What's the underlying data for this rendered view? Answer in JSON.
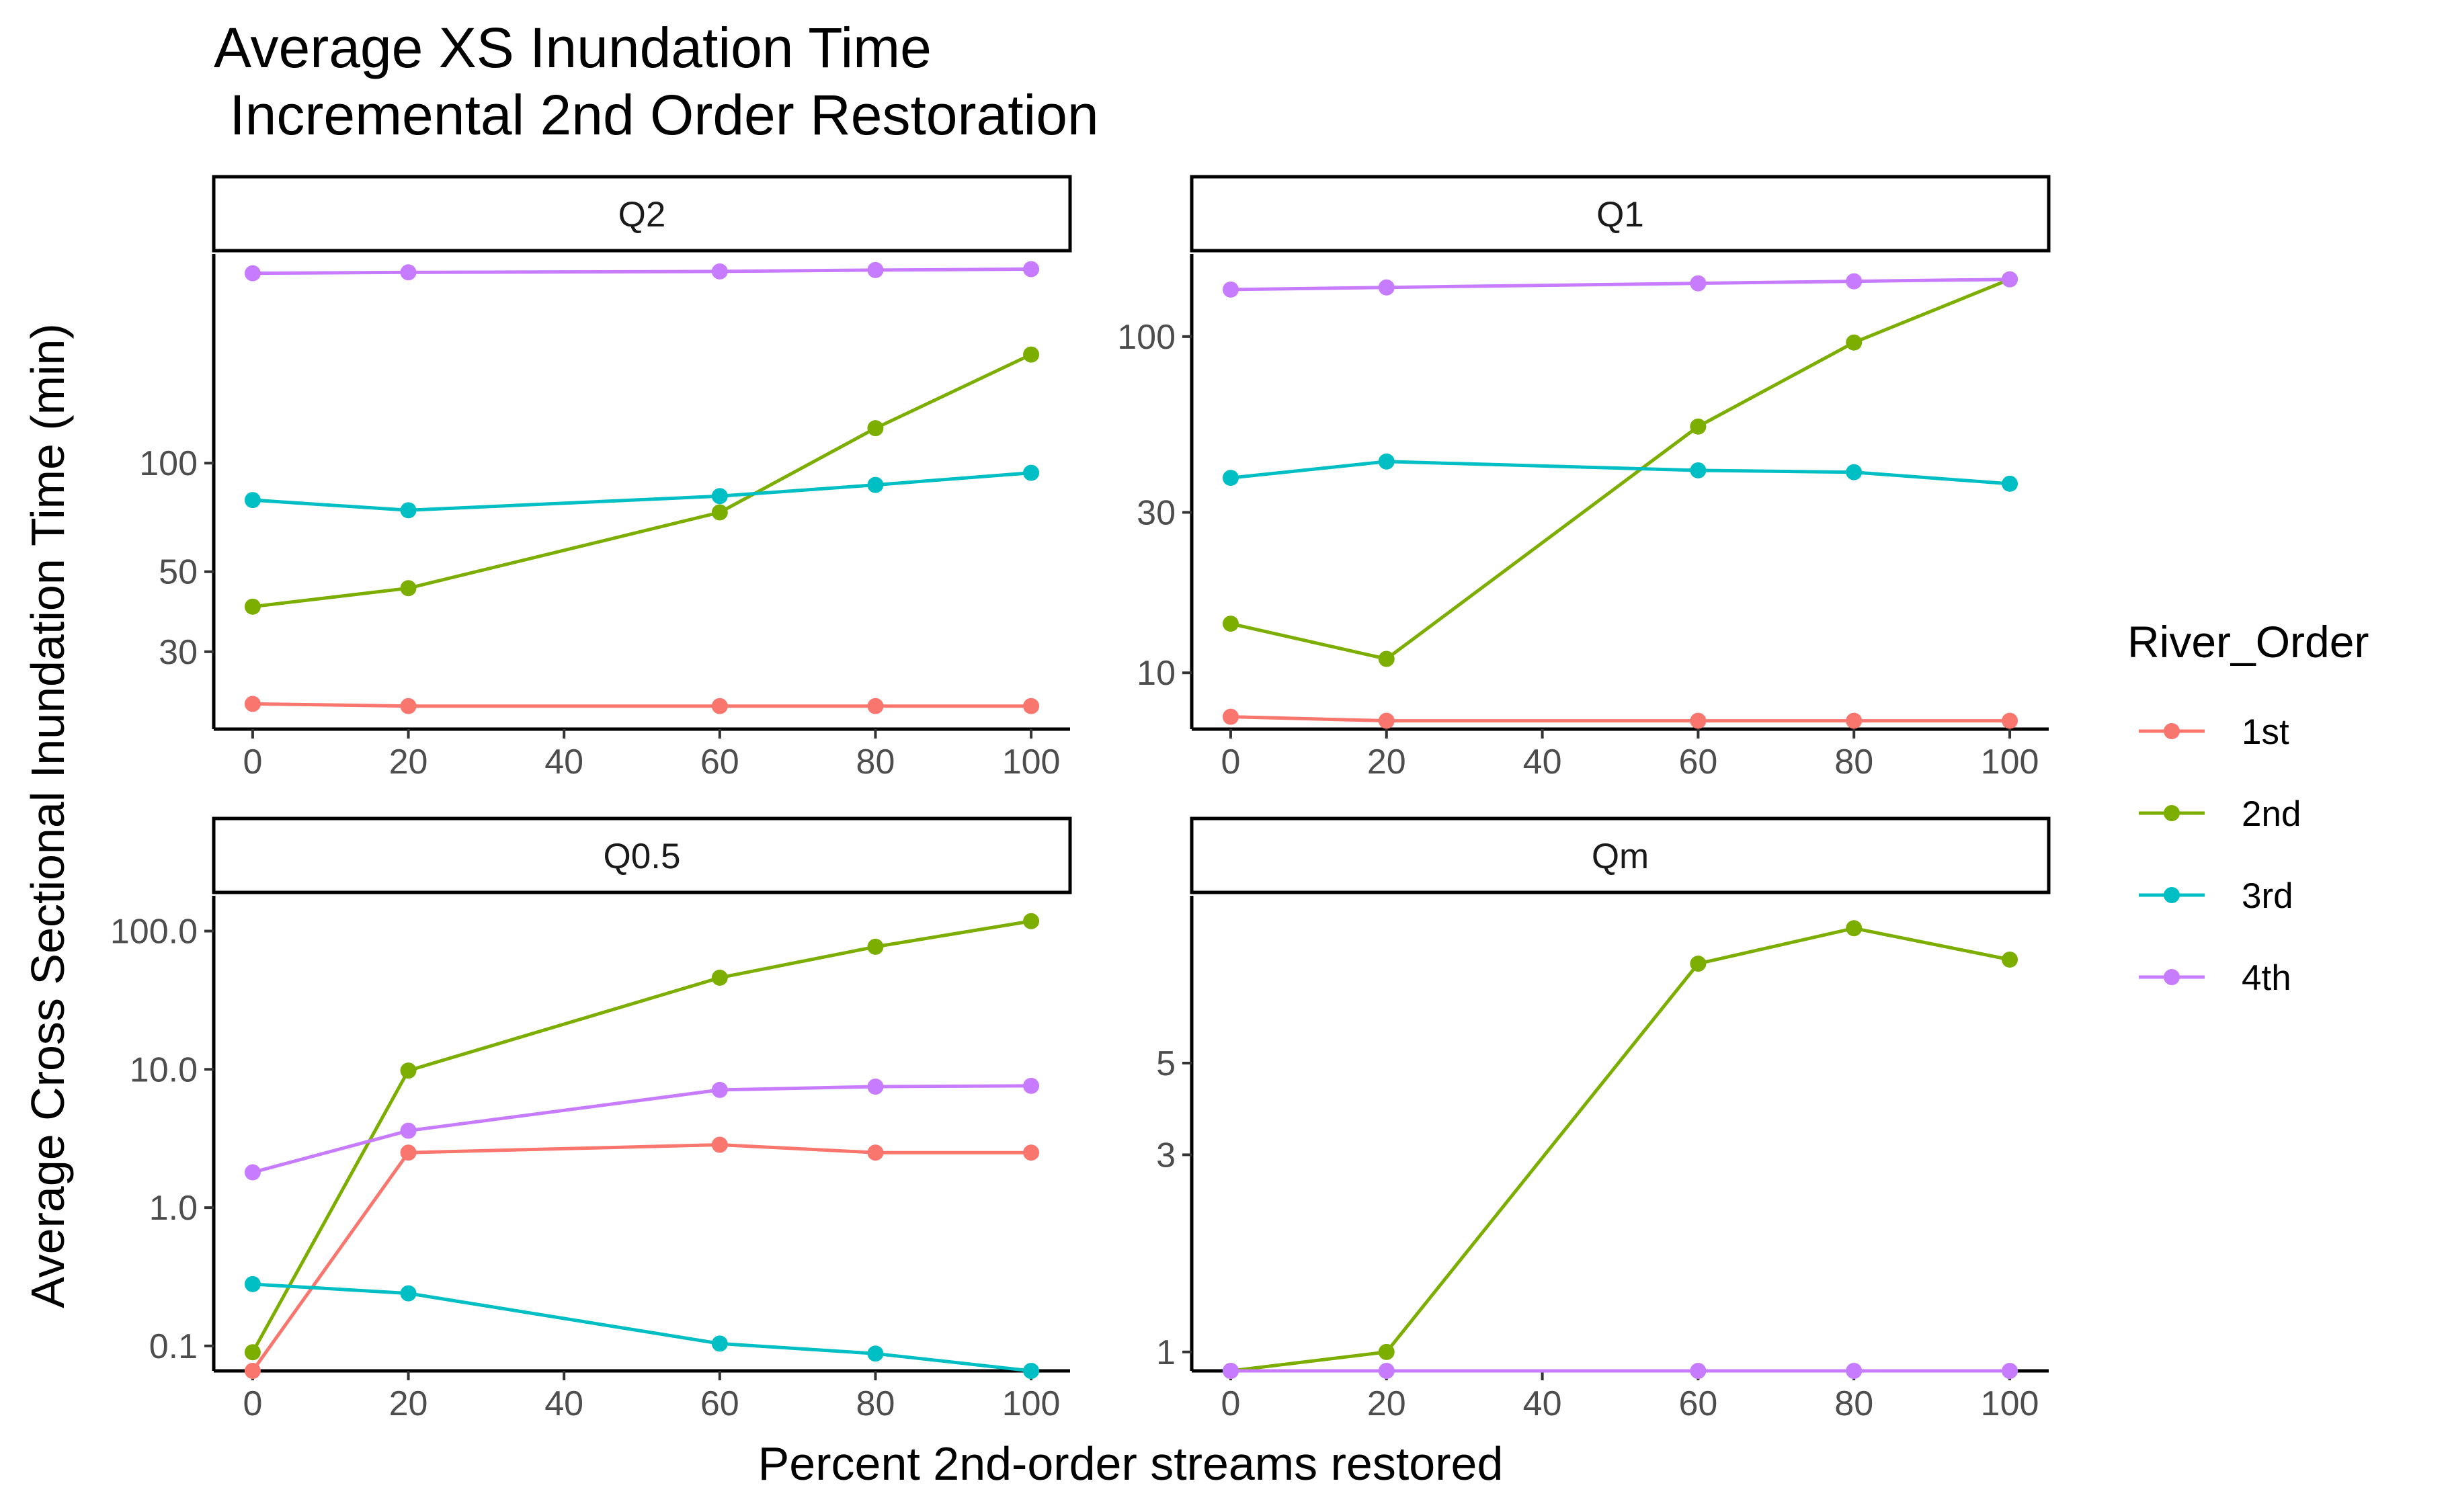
{
  "title": "Average XS Inundation Time",
  "subtitle": " Incremental 2nd Order Restoration",
  "x_title": "Percent 2nd-order streams restored",
  "y_title": "Average Cross Sectional Inundation Time (min)",
  "legend": {
    "title": "River_Order",
    "entries": [
      {
        "label": "1st",
        "color": "#F8766D"
      },
      {
        "label": "2nd",
        "color": "#7CAE00"
      },
      {
        "label": "3rd",
        "color": "#00BFC4"
      },
      {
        "label": "4th",
        "color": "#C77CFF"
      }
    ]
  },
  "chart_data": [
    {
      "type": "line",
      "panel": "Q2",
      "x": [
        0,
        20,
        60,
        80,
        100
      ],
      "xlim": [
        -5,
        105
      ],
      "x_ticks": [
        0,
        20,
        40,
        60,
        80,
        100
      ],
      "y_scale": "log10",
      "ylim": [
        18.3,
        380
      ],
      "y_ticks": [
        30,
        50,
        100
      ],
      "y_tick_labels": [
        "30",
        "50",
        "100"
      ],
      "series": [
        {
          "name": "1st",
          "values": [
            21.5,
            21.2,
            21.2,
            21.2,
            21.2
          ]
        },
        {
          "name": "2nd",
          "values": [
            40,
            45,
            73,
            125,
            200
          ]
        },
        {
          "name": "3rd",
          "values": [
            79,
            74,
            81,
            87,
            94
          ]
        },
        {
          "name": "4th",
          "values": [
            336,
            338,
            340,
            343,
            345
          ]
        }
      ]
    },
    {
      "type": "line",
      "panel": "Q1",
      "x": [
        0,
        20,
        60,
        80,
        100
      ],
      "xlim": [
        -5,
        105
      ],
      "x_ticks": [
        0,
        20,
        40,
        60,
        80,
        100
      ],
      "y_scale": "log10",
      "ylim": [
        6.8,
        176
      ],
      "y_ticks": [
        10,
        30,
        100
      ],
      "y_tick_labels": [
        "10",
        "30",
        "100"
      ],
      "series": [
        {
          "name": "1st",
          "values": [
            7.4,
            7.2,
            7.2,
            7.2,
            7.2
          ]
        },
        {
          "name": "2nd",
          "values": [
            14,
            11,
            54,
            96,
            148
          ]
        },
        {
          "name": "3rd",
          "values": [
            38,
            42.5,
            40,
            39.5,
            36.5
          ]
        },
        {
          "name": "4th",
          "values": [
            138,
            140,
            144,
            146,
            148
          ]
        }
      ]
    },
    {
      "type": "line",
      "panel": "Q0.5",
      "x": [
        0,
        20,
        60,
        80,
        100
      ],
      "xlim": [
        -5,
        105
      ],
      "x_ticks": [
        0,
        20,
        40,
        60,
        80,
        100
      ],
      "y_scale": "log10",
      "ylim": [
        0.066,
        180
      ],
      "y_ticks": [
        0.1,
        1,
        10,
        100
      ],
      "y_tick_labels": [
        "0.1",
        "1.0",
        "10.0",
        "100.0"
      ],
      "series": [
        {
          "name": "1st",
          "values": [
            0.066,
            2.5,
            2.85,
            2.5,
            2.5
          ]
        },
        {
          "name": "2nd",
          "values": [
            0.09,
            9.8,
            46,
            77,
            118
          ]
        },
        {
          "name": "3rd",
          "values": [
            0.28,
            0.24,
            0.104,
            0.088,
            0.066
          ]
        },
        {
          "name": "4th",
          "values": [
            1.8,
            3.6,
            7.1,
            7.5,
            7.6
          ]
        }
      ]
    },
    {
      "type": "line",
      "panel": "Qm",
      "x": [
        0,
        20,
        60,
        80,
        100
      ],
      "xlim": [
        -5,
        105
      ],
      "x_ticks": [
        0,
        20,
        40,
        60,
        80,
        100
      ],
      "y_scale": "log10",
      "ylim": [
        0.9,
        12.7
      ],
      "y_ticks": [
        1,
        3,
        5
      ],
      "y_tick_labels": [
        "1",
        "3",
        "5"
      ],
      "series": [
        {
          "name": "2nd",
          "values": [
            0.9,
            1.0,
            8.7,
            10.6,
            8.9
          ]
        },
        {
          "name": "4th",
          "values": [
            0.9,
            0.9,
            0.9,
            0.9,
            0.9
          ]
        }
      ]
    }
  ]
}
